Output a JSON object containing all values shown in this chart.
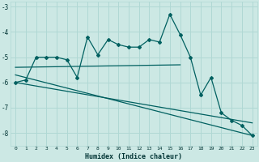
{
  "xlabel": "Humidex (Indice chaleur)",
  "ylabel": "",
  "background_color": "#cce8e4",
  "grid_color": "#b0d8d4",
  "line_color": "#006060",
  "xlim": [
    -0.5,
    23.5
  ],
  "ylim": [
    -8.5,
    -2.8
  ],
  "yticks": [
    -8,
    -7,
    -6,
    -5,
    -4,
    -3
  ],
  "xticks": [
    0,
    1,
    2,
    3,
    4,
    5,
    6,
    7,
    8,
    9,
    10,
    11,
    12,
    13,
    14,
    15,
    16,
    17,
    18,
    19,
    20,
    21,
    22,
    23
  ],
  "series1_x": [
    0,
    1,
    2,
    3,
    4,
    5,
    6,
    7,
    8,
    9,
    10,
    11,
    12,
    13,
    14,
    15,
    16,
    17,
    18,
    19,
    20,
    21,
    22,
    23
  ],
  "series1_y": [
    -6.0,
    -5.9,
    -5.0,
    -5.0,
    -5.0,
    -5.1,
    -5.8,
    -4.2,
    -4.9,
    -4.3,
    -4.5,
    -4.6,
    -4.6,
    -4.3,
    -4.4,
    -3.3,
    -4.1,
    -5.0,
    -6.5,
    -5.8,
    -7.2,
    -7.5,
    -7.7,
    -8.1
  ],
  "series2_x": [
    0,
    16
  ],
  "series2_y": [
    -5.4,
    -5.3
  ],
  "series3_x": [
    0,
    23
  ],
  "series3_y": [
    -5.7,
    -8.1
  ],
  "series4_x": [
    0,
    23
  ],
  "series4_y": [
    -6.0,
    -7.6
  ],
  "marker": "D",
  "markersize": 2.0,
  "linewidth": 0.9
}
